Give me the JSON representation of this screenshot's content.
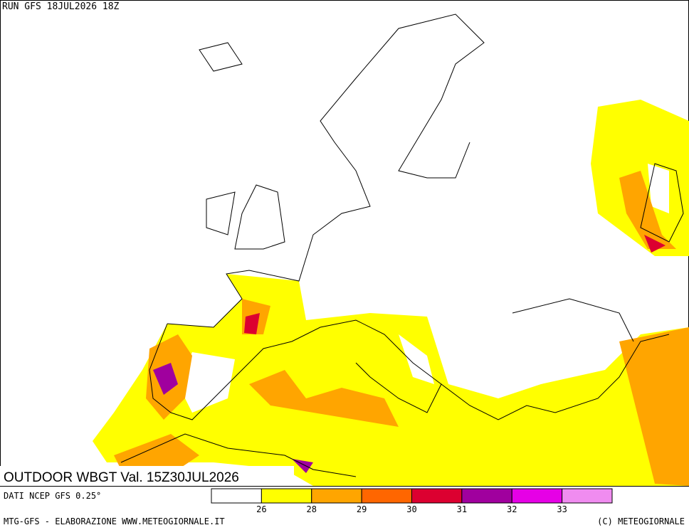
{
  "run_title": "RUN GFS 18JUL2026 18Z",
  "field_title": "OUTDOOR WBGT Val. 15Z30JUL2026",
  "source": "DATI NCEP GFS 0.25°",
  "colorbar": {
    "colors": [
      "#ffffff",
      "#ffff00",
      "#ffa500",
      "#ff6600",
      "#dc0030",
      "#a0009e",
      "#e600e6",
      "#f08cf0"
    ],
    "ticks": [
      26,
      28,
      29,
      30,
      31,
      32,
      33
    ]
  },
  "footer": {
    "left": "MTG-GFS - ELABORAZIONE WWW.METEOGIORNALE.IT",
    "right": "(C) METEOGIORNALE"
  }
}
